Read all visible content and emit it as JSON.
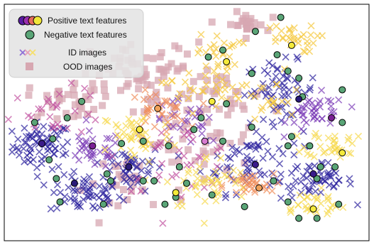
{
  "chart_data": {
    "type": "scatter",
    "title": "",
    "xlabel": "",
    "ylabel": "",
    "xlim": [
      0,
      100
    ],
    "ylim": [
      0,
      100
    ],
    "grid": false,
    "legend_position": "top-left",
    "legend": [
      {
        "label": "Positive text features",
        "marker": "circle-group",
        "colors": [
          "#5a1da3",
          "#9b2fb0",
          "#e56b5d",
          "#f1e63a"
        ]
      },
      {
        "label": "Negative text features",
        "marker": "circle",
        "color": "#5aa577"
      },
      {
        "label": "ID images",
        "marker": "cross",
        "colors": [
          "#8e6fd6",
          "#e6a0b8",
          "#f6e06c"
        ]
      },
      {
        "label": "OOD images",
        "marker": "square",
        "color": "#d7a7b1"
      }
    ],
    "clusters": [
      {
        "series": "ID images",
        "color": "#2a1f9c",
        "center": [
          10.0,
          40.0
        ],
        "spread": [
          4.0,
          5.0
        ],
        "n": 70
      },
      {
        "series": "ID images",
        "color": "#2a1f9c",
        "center": [
          22.0,
          19.0
        ],
        "spread": [
          5.0,
          4.0
        ],
        "n": 60
      },
      {
        "series": "ID images",
        "color": "#2a1f9c",
        "center": [
          34.0,
          31.0
        ],
        "spread": [
          5.0,
          5.0
        ],
        "n": 50
      },
      {
        "series": "ID images",
        "color": "#2a1f9c",
        "center": [
          68.0,
          34.0
        ],
        "spread": [
          7.0,
          7.0
        ],
        "n": 70
      },
      {
        "series": "ID images",
        "color": "#2a1f9c",
        "center": [
          76.0,
          64.0
        ],
        "spread": [
          5.0,
          6.0
        ],
        "n": 60
      },
      {
        "series": "ID images",
        "color": "#2a1f9c",
        "center": [
          86.0,
          25.0
        ],
        "spread": [
          5.0,
          4.0
        ],
        "n": 50
      },
      {
        "series": "ID images",
        "color": "#7a3ab6",
        "center": [
          24.0,
          38.0
        ],
        "spread": [
          4.0,
          4.0
        ],
        "n": 35
      },
      {
        "series": "ID images",
        "color": "#7a3ab6",
        "center": [
          50.0,
          50.0
        ],
        "spread": [
          5.0,
          5.0
        ],
        "n": 30
      },
      {
        "series": "ID images",
        "color": "#7a3ab6",
        "center": [
          86.0,
          54.0
        ],
        "spread": [
          4.0,
          4.0
        ],
        "n": 40
      },
      {
        "series": "ID images",
        "color": "#c04f9e",
        "center": [
          14.0,
          55.0
        ],
        "spread": [
          7.0,
          5.0
        ],
        "n": 30
      },
      {
        "series": "ID images",
        "color": "#c04f9e",
        "center": [
          48.0,
          35.0
        ],
        "spread": [
          8.0,
          7.0
        ],
        "n": 35
      },
      {
        "series": "ID images",
        "color": "#ef8c58",
        "center": [
          42.0,
          55.0
        ],
        "spread": [
          4.0,
          4.0
        ],
        "n": 35
      },
      {
        "series": "ID images",
        "color": "#ef8c58",
        "center": [
          67.0,
          23.0
        ],
        "spread": [
          3.5,
          2.5
        ],
        "n": 35
      },
      {
        "series": "ID images",
        "color": "#f7d84a",
        "center": [
          36.0,
          44.0
        ],
        "spread": [
          5.0,
          6.0
        ],
        "n": 45
      },
      {
        "series": "ID images",
        "color": "#f7d84a",
        "center": [
          56.0,
          24.0
        ],
        "spread": [
          6.0,
          6.0
        ],
        "n": 45
      },
      {
        "series": "ID images",
        "color": "#f7d84a",
        "center": [
          91.0,
          41.0
        ],
        "spread": [
          4.0,
          3.0
        ],
        "n": 35
      },
      {
        "series": "ID images",
        "color": "#f7d84a",
        "center": [
          84.0,
          15.0
        ],
        "spread": [
          5.0,
          3.0
        ],
        "n": 30
      },
      {
        "series": "ID images",
        "color": "#f5c83a",
        "center": [
          78.0,
          86.0
        ],
        "spread": [
          4.0,
          3.0
        ],
        "n": 30
      },
      {
        "series": "ID images",
        "color": "#f5c83a",
        "center": [
          59.0,
          80.0
        ],
        "spread": [
          3.0,
          4.0
        ],
        "n": 25
      },
      {
        "series": "ID images",
        "color": "#f5c83a",
        "center": [
          54.0,
          65.0
        ],
        "spread": [
          5.0,
          5.0
        ],
        "n": 30
      },
      {
        "series": "ID images",
        "color": "#f5c83a",
        "center": [
          72.0,
          60.0
        ],
        "spread": [
          6.0,
          6.0
        ],
        "n": 25
      },
      {
        "series": "OOD images",
        "color": "#d7a7b1",
        "center": [
          40.0,
          70.0
        ],
        "spread": [
          8.0,
          7.0
        ],
        "n": 70
      },
      {
        "series": "OOD images",
        "color": "#d7a7b1",
        "center": [
          18.0,
          60.0
        ],
        "spread": [
          6.0,
          4.0
        ],
        "n": 35
      },
      {
        "series": "OOD images",
        "color": "#d7a7b1",
        "center": [
          66.0,
          92.0
        ],
        "spread": [
          3.0,
          2.5
        ],
        "n": 25
      },
      {
        "series": "OOD images",
        "color": "#d7a7b1",
        "center": [
          52.0,
          42.0
        ],
        "spread": [
          8.0,
          8.0
        ],
        "n": 40
      },
      {
        "series": "OOD images",
        "color": "#d7a7b1",
        "center": [
          34.0,
          24.0
        ],
        "spread": [
          6.0,
          6.0
        ],
        "n": 25
      },
      {
        "series": "OOD images",
        "color": "#d7a7b1",
        "center": [
          64.0,
          60.0
        ],
        "spread": [
          6.0,
          6.0
        ],
        "n": 25
      }
    ],
    "negative_text_features": [
      [
        8.0,
        50.0
      ],
      [
        13.0,
        43.0
      ],
      [
        17.0,
        52.0
      ],
      [
        21.0,
        59.0
      ],
      [
        12.0,
        34.0
      ],
      [
        14.0,
        26.0
      ],
      [
        15.0,
        16.0
      ],
      [
        27.0,
        15.0
      ],
      [
        28.0,
        28.0
      ],
      [
        29.0,
        25.0
      ],
      [
        32.0,
        41.0
      ],
      [
        38.0,
        42.0
      ],
      [
        38.0,
        25.0
      ],
      [
        41.0,
        25.0
      ],
      [
        44.0,
        15.0
      ],
      [
        47.0,
        18.0
      ],
      [
        45.0,
        40.0
      ],
      [
        48.0,
        31.0
      ],
      [
        50.0,
        24.0
      ],
      [
        52.0,
        47.0
      ],
      [
        54.0,
        52.0
      ],
      [
        56.0,
        78.0
      ],
      [
        60.0,
        81.0
      ],
      [
        61.0,
        58.0
      ],
      [
        60.0,
        42.0
      ],
      [
        57.0,
        19.0
      ],
      [
        66.0,
        14.0
      ],
      [
        68.0,
        48.0
      ],
      [
        68.0,
        71.0
      ],
      [
        69.0,
        89.0
      ],
      [
        76.0,
        95.0
      ],
      [
        75.0,
        79.0
      ],
      [
        78.0,
        72.0
      ],
      [
        81.0,
        69.0
      ],
      [
        82.0,
        61.0
      ],
      [
        84.0,
        40.0
      ],
      [
        87.0,
        31.0
      ],
      [
        86.0,
        26.0
      ],
      [
        78.0,
        40.0
      ],
      [
        79.0,
        44.0
      ],
      [
        74.0,
        25.0
      ],
      [
        78.0,
        16.0
      ],
      [
        81.0,
        9.0
      ],
      [
        86.0,
        9.0
      ],
      [
        92.0,
        15.0
      ],
      [
        93.0,
        50.0
      ],
      [
        93.0,
        64.0
      ],
      [
        91.0,
        31.0
      ]
    ],
    "positive_text_features": [
      {
        "point": [
          10.0,
          41.0
        ],
        "color": "#3a1b8a"
      },
      {
        "point": [
          24.0,
          40.0
        ],
        "color": "#7a1f95"
      },
      {
        "point": [
          34.0,
          31.0
        ],
        "color": "#2a1a78"
      },
      {
        "point": [
          19.0,
          24.0
        ],
        "color": "#2a1a78"
      },
      {
        "point": [
          37.0,
          47.0
        ],
        "color": "#f4ea3a"
      },
      {
        "point": [
          42.0,
          56.0
        ],
        "color": "#f0a159"
      },
      {
        "point": [
          55.0,
          42.0
        ],
        "color": "#d77bd1"
      },
      {
        "point": [
          57.0,
          59.0
        ],
        "color": "#f4ea3a"
      },
      {
        "point": [
          61.0,
          76.0
        ],
        "color": "#f4ea3a"
      },
      {
        "point": [
          69.0,
          32.0
        ],
        "color": "#3a1b8a"
      },
      {
        "point": [
          70.0,
          22.0
        ],
        "color": "#f0a159"
      },
      {
        "point": [
          81.0,
          60.0
        ],
        "color": "#2a1a78"
      },
      {
        "point": [
          85.0,
          28.0
        ],
        "color": "#3a1b8a"
      },
      {
        "point": [
          90.0,
          52.0
        ],
        "color": "#7a1f95"
      },
      {
        "point": [
          93.0,
          37.0
        ],
        "color": "#f4ea3a"
      },
      {
        "point": [
          47.0,
          20.0
        ],
        "color": "#f4ea3a"
      },
      {
        "point": [
          85.0,
          13.0
        ],
        "color": "#f4ea3a"
      },
      {
        "point": [
          79.0,
          83.0
        ],
        "color": "#f4ea3a"
      }
    ]
  }
}
